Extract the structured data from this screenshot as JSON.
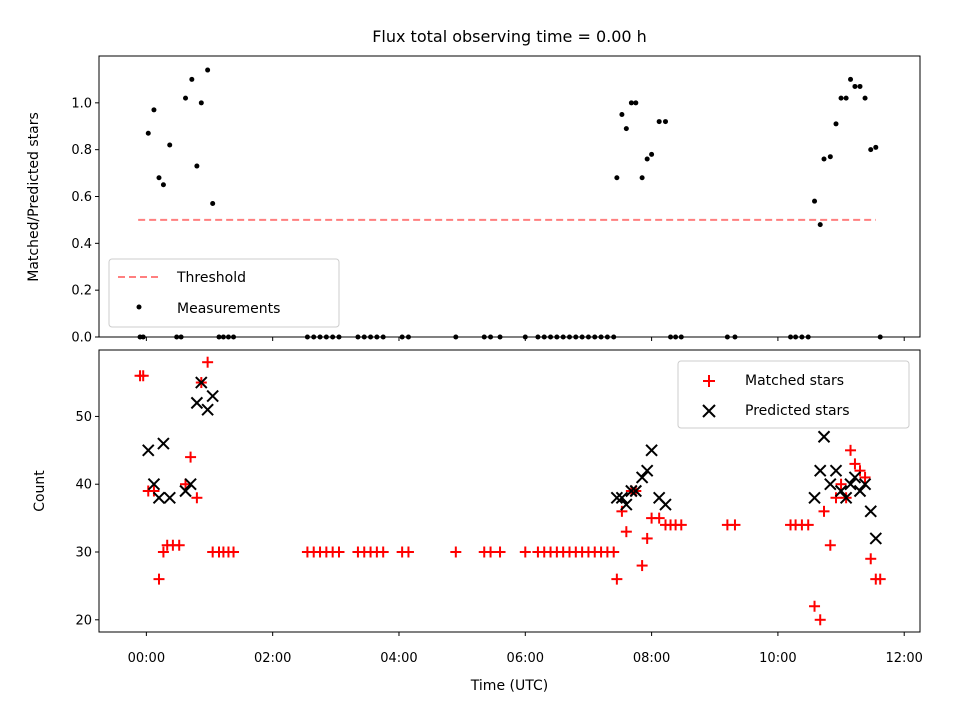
{
  "chart_data": [
    {
      "type": "scatter",
      "panel": "top",
      "title": "Flux total observing time = 0.00 h",
      "ylabel": "Matched/Predicted stars",
      "xlabel": "",
      "xlim": [
        -0.75,
        12.25
      ],
      "ylim": [
        0.0,
        1.2
      ],
      "yticks": [
        0.0,
        0.2,
        0.4,
        0.6,
        0.8,
        1.0
      ],
      "ytick_labels": [
        "0.0",
        "0.2",
        "0.4",
        "0.6",
        "0.8",
        "1.0"
      ],
      "legend": {
        "position": "lower-left",
        "entries": [
          {
            "label": "Threshold",
            "kind": "dashed-line",
            "color": "#ff7f7f"
          },
          {
            "label": "Measurements",
            "kind": "dot",
            "color": "#000000"
          }
        ]
      },
      "threshold": {
        "label": "Threshold",
        "value": 0.5,
        "x_start": -0.13,
        "x_end": 11.55,
        "color": "#ff7f7f"
      },
      "series": [
        {
          "name": "Measurements",
          "color": "#000000",
          "points": [
            [
              -0.1,
              0
            ],
            [
              -0.05,
              0
            ],
            [
              0.03,
              0.87
            ],
            [
              0.12,
              0.97
            ],
            [
              0.2,
              0.68
            ],
            [
              0.27,
              0.65
            ],
            [
              0.37,
              0.82
            ],
            [
              0.48,
              0
            ],
            [
              0.55,
              0
            ],
            [
              0.62,
              1.02
            ],
            [
              0.72,
              1.1
            ],
            [
              0.8,
              0.73
            ],
            [
              0.87,
              1.0
            ],
            [
              0.97,
              1.14
            ],
            [
              1.05,
              0.57
            ],
            [
              1.15,
              0
            ],
            [
              1.22,
              0
            ],
            [
              1.3,
              0
            ],
            [
              1.38,
              0
            ],
            [
              2.55,
              0
            ],
            [
              2.65,
              0
            ],
            [
              2.75,
              0
            ],
            [
              2.85,
              0
            ],
            [
              2.95,
              0
            ],
            [
              3.05,
              0
            ],
            [
              3.35,
              0
            ],
            [
              3.45,
              0
            ],
            [
              3.55,
              0
            ],
            [
              3.65,
              0
            ],
            [
              3.75,
              0
            ],
            [
              4.05,
              0
            ],
            [
              4.15,
              0
            ],
            [
              4.9,
              0
            ],
            [
              5.35,
              0
            ],
            [
              5.45,
              0
            ],
            [
              5.6,
              0
            ],
            [
              6.0,
              0
            ],
            [
              6.2,
              0
            ],
            [
              6.3,
              0
            ],
            [
              6.4,
              0
            ],
            [
              6.5,
              0
            ],
            [
              6.6,
              0
            ],
            [
              6.7,
              0
            ],
            [
              6.8,
              0
            ],
            [
              6.9,
              0
            ],
            [
              7.0,
              0
            ],
            [
              7.1,
              0
            ],
            [
              7.2,
              0
            ],
            [
              7.3,
              0
            ],
            [
              7.4,
              0
            ],
            [
              7.45,
              0.68
            ],
            [
              7.53,
              0.95
            ],
            [
              7.6,
              0.89
            ],
            [
              7.68,
              1.0
            ],
            [
              7.75,
              1.0
            ],
            [
              7.85,
              0.68
            ],
            [
              7.93,
              0.76
            ],
            [
              8.0,
              0.78
            ],
            [
              8.12,
              0.92
            ],
            [
              8.22,
              0.92
            ],
            [
              8.3,
              0
            ],
            [
              8.38,
              0
            ],
            [
              8.47,
              0
            ],
            [
              9.2,
              0
            ],
            [
              9.32,
              0
            ],
            [
              10.2,
              0
            ],
            [
              10.28,
              0
            ],
            [
              10.38,
              0
            ],
            [
              10.48,
              0
            ],
            [
              10.58,
              0.58
            ],
            [
              10.67,
              0.48
            ],
            [
              10.73,
              0.76
            ],
            [
              10.83,
              0.77
            ],
            [
              10.92,
              0.91
            ],
            [
              11.0,
              1.02
            ],
            [
              11.08,
              1.02
            ],
            [
              11.15,
              1.1
            ],
            [
              11.22,
              1.07
            ],
            [
              11.3,
              1.07
            ],
            [
              11.38,
              1.02
            ],
            [
              11.47,
              0.8
            ],
            [
              11.55,
              0.81
            ],
            [
              11.62,
              0
            ]
          ]
        }
      ]
    },
    {
      "type": "scatter",
      "panel": "bottom",
      "title": "",
      "ylabel": "Count",
      "xlabel": "Time (UTC)",
      "xlim": [
        -0.75,
        12.25
      ],
      "ylim": [
        18.2,
        59.8
      ],
      "yticks": [
        20,
        30,
        40,
        50
      ],
      "ytick_labels": [
        "20",
        "30",
        "40",
        "50"
      ],
      "xticks": [
        0,
        2,
        4,
        6,
        8,
        10,
        12
      ],
      "xtick_labels": [
        "00:00",
        "02:00",
        "04:00",
        "06:00",
        "08:00",
        "10:00",
        "12:00"
      ],
      "legend": {
        "position": "upper-right",
        "entries": [
          {
            "label": "Matched stars",
            "kind": "plus",
            "color": "#ff0000"
          },
          {
            "label": "Predicted stars",
            "kind": "x",
            "color": "#000000"
          }
        ]
      },
      "series": [
        {
          "name": "Matched stars",
          "color": "#ff0000",
          "marker": "plus",
          "points": [
            [
              -0.1,
              56
            ],
            [
              -0.05,
              56
            ],
            [
              0.03,
              39
            ],
            [
              0.12,
              39
            ],
            [
              0.2,
              26
            ],
            [
              0.27,
              30
            ],
            [
              0.33,
              31
            ],
            [
              0.42,
              31
            ],
            [
              0.52,
              31
            ],
            [
              0.62,
              40
            ],
            [
              0.7,
              44
            ],
            [
              0.8,
              38
            ],
            [
              0.87,
              55
            ],
            [
              0.97,
              58
            ],
            [
              1.05,
              30
            ],
            [
              1.15,
              30
            ],
            [
              1.22,
              30
            ],
            [
              1.3,
              30
            ],
            [
              1.38,
              30
            ],
            [
              2.55,
              30
            ],
            [
              2.65,
              30
            ],
            [
              2.75,
              30
            ],
            [
              2.85,
              30
            ],
            [
              2.95,
              30
            ],
            [
              3.05,
              30
            ],
            [
              3.35,
              30
            ],
            [
              3.45,
              30
            ],
            [
              3.55,
              30
            ],
            [
              3.65,
              30
            ],
            [
              3.75,
              30
            ],
            [
              4.05,
              30
            ],
            [
              4.15,
              30
            ],
            [
              4.9,
              30
            ],
            [
              5.35,
              30
            ],
            [
              5.45,
              30
            ],
            [
              5.6,
              30
            ],
            [
              6.0,
              30
            ],
            [
              6.2,
              30
            ],
            [
              6.3,
              30
            ],
            [
              6.4,
              30
            ],
            [
              6.5,
              30
            ],
            [
              6.6,
              30
            ],
            [
              6.7,
              30
            ],
            [
              6.8,
              30
            ],
            [
              6.9,
              30
            ],
            [
              7.0,
              30
            ],
            [
              7.1,
              30
            ],
            [
              7.2,
              30
            ],
            [
              7.3,
              30
            ],
            [
              7.4,
              30
            ],
            [
              7.45,
              26
            ],
            [
              7.53,
              36
            ],
            [
              7.6,
              33
            ],
            [
              7.68,
              39
            ],
            [
              7.75,
              39
            ],
            [
              7.85,
              28
            ],
            [
              7.93,
              32
            ],
            [
              8.0,
              35
            ],
            [
              8.12,
              35
            ],
            [
              8.22,
              34
            ],
            [
              8.3,
              34
            ],
            [
              8.38,
              34
            ],
            [
              8.47,
              34
            ],
            [
              9.2,
              34
            ],
            [
              9.32,
              34
            ],
            [
              10.2,
              34
            ],
            [
              10.28,
              34
            ],
            [
              10.38,
              34
            ],
            [
              10.48,
              34
            ],
            [
              10.58,
              22
            ],
            [
              10.67,
              20
            ],
            [
              10.73,
              36
            ],
            [
              10.83,
              31
            ],
            [
              10.92,
              38
            ],
            [
              11.0,
              40
            ],
            [
              11.08,
              38
            ],
            [
              11.15,
              45
            ],
            [
              11.22,
              43
            ],
            [
              11.3,
              42
            ],
            [
              11.38,
              41
            ],
            [
              11.47,
              29
            ],
            [
              11.55,
              26
            ],
            [
              11.62,
              26
            ]
          ]
        },
        {
          "name": "Predicted stars",
          "color": "#000000",
          "marker": "x",
          "points": [
            [
              0.03,
              45
            ],
            [
              0.12,
              40
            ],
            [
              0.2,
              38
            ],
            [
              0.27,
              46
            ],
            [
              0.37,
              38
            ],
            [
              0.62,
              39
            ],
            [
              0.7,
              40
            ],
            [
              0.8,
              52
            ],
            [
              0.87,
              55
            ],
            [
              0.97,
              51
            ],
            [
              1.05,
              53
            ],
            [
              7.45,
              38
            ],
            [
              7.53,
              38
            ],
            [
              7.6,
              37
            ],
            [
              7.68,
              39
            ],
            [
              7.75,
              39
            ],
            [
              7.85,
              41
            ],
            [
              7.93,
              42
            ],
            [
              8.0,
              45
            ],
            [
              8.12,
              38
            ],
            [
              8.22,
              37
            ],
            [
              10.58,
              38
            ],
            [
              10.67,
              42
            ],
            [
              10.73,
              47
            ],
            [
              10.83,
              40
            ],
            [
              10.92,
              42
            ],
            [
              11.0,
              39
            ],
            [
              11.08,
              38
            ],
            [
              11.15,
              40
            ],
            [
              11.22,
              41
            ],
            [
              11.3,
              39
            ],
            [
              11.38,
              40
            ],
            [
              11.47,
              36
            ],
            [
              11.55,
              32
            ]
          ]
        }
      ]
    }
  ]
}
